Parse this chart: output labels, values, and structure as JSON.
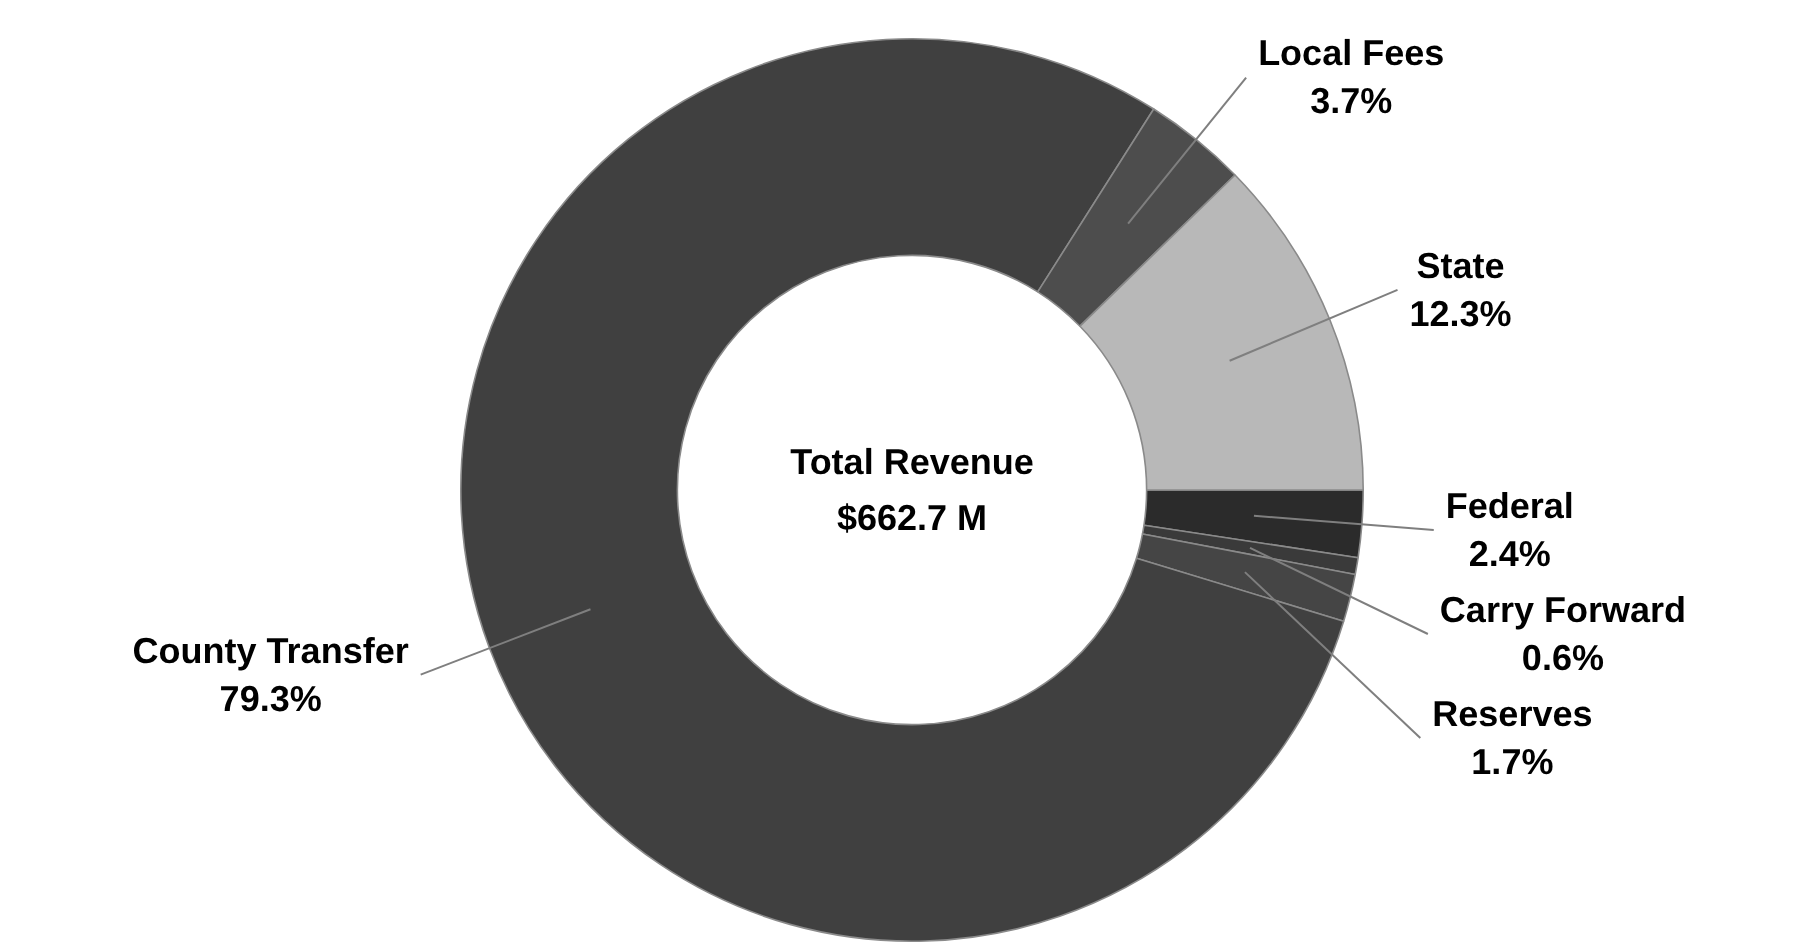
{
  "chart_data": {
    "type": "donut",
    "title": "Total Revenue",
    "subtitle": "$662.7 M",
    "categories": [
      "Federal",
      "Carry Forward",
      "Reserves",
      "County Transfer",
      "Local Fees",
      "State"
    ],
    "values": [
      2.4,
      0.6,
      1.7,
      79.3,
      3.7,
      12.3
    ],
    "colors": [
      "#2b2b2b",
      "#3a3a3a",
      "#454545",
      "#404040",
      "#4d4d4d",
      "#b8b8b8"
    ],
    "value_labels": [
      "2.4%",
      "0.6%",
      "1.7%",
      "79.3%",
      "3.7%",
      "12.3%"
    ]
  }
}
